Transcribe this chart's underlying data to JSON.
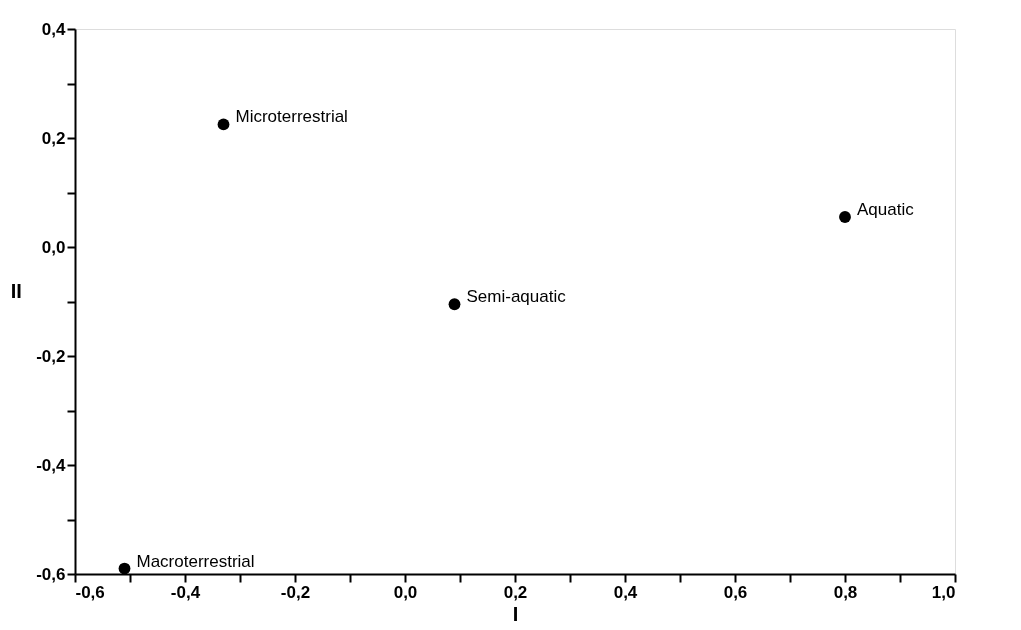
{
  "chart_data": {
    "type": "scatter",
    "xlabel": "I",
    "ylabel": "II",
    "x": [
      -0.33,
      0.8,
      0.09,
      -0.51
    ],
    "values": [
      0.225,
      0.055,
      -0.105,
      -0.59
    ],
    "color": "#000000",
    "marker": "circle",
    "grid": false,
    "xlim": [
      -0.6,
      1.0
    ],
    "xticks": [
      {
        "value": -0.6,
        "label": "-0,6"
      },
      {
        "value": -0.5,
        "label": null
      },
      {
        "value": -0.4,
        "label": "-0,4"
      },
      {
        "value": -0.3,
        "label": null
      },
      {
        "value": -0.2,
        "label": "-0,2"
      },
      {
        "value": -0.1,
        "label": null
      },
      {
        "value": 0.0,
        "label": "0,0"
      },
      {
        "value": 0.1,
        "label": null
      },
      {
        "value": 0.2,
        "label": "0,2"
      },
      {
        "value": 0.3,
        "label": null
      },
      {
        "value": 0.4,
        "label": "0,4"
      },
      {
        "value": 0.5,
        "label": null
      },
      {
        "value": 0.6,
        "label": "0,6"
      },
      {
        "value": 0.7,
        "label": null
      },
      {
        "value": 0.8,
        "label": "0,8"
      },
      {
        "value": 0.9,
        "label": null
      },
      {
        "value": 1.0,
        "label": "1,0"
      }
    ],
    "ylim": [
      -0.6,
      0.4
    ],
    "yticks": [
      {
        "value": -0.6,
        "label": "-0,6"
      },
      {
        "value": -0.5,
        "label": null
      },
      {
        "value": -0.4,
        "label": "-0,4"
      },
      {
        "value": -0.3,
        "label": null
      },
      {
        "value": -0.2,
        "label": "-0,2"
      },
      {
        "value": -0.1,
        "label": null
      },
      {
        "value": 0.0,
        "label": "0,0"
      },
      {
        "value": 0.1,
        "label": null
      },
      {
        "value": 0.2,
        "label": "0,2"
      },
      {
        "value": 0.3,
        "label": null
      },
      {
        "value": 0.4,
        "label": "0,4"
      }
    ],
    "annotations": [
      {
        "text": "Microterrestrial",
        "x": -0.33,
        "y": 0.225
      },
      {
        "text": "Aquatic",
        "x": 0.8,
        "y": 0.055
      },
      {
        "text": "Semi-aquatic",
        "x": 0.09,
        "y": -0.105
      },
      {
        "text": "Macroterrestrial",
        "x": -0.51,
        "y": -0.59
      }
    ]
  }
}
